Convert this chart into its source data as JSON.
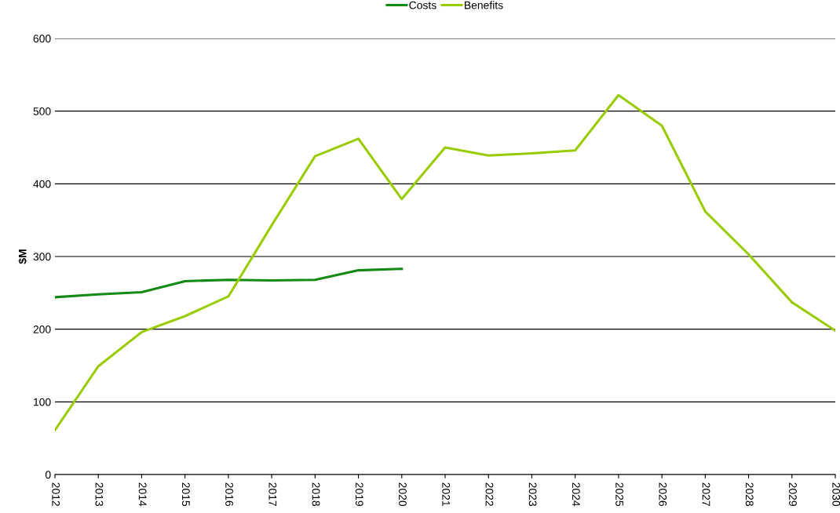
{
  "chart_data": {
    "type": "line",
    "ylabel": "$M",
    "categories": [
      "2012",
      "2013",
      "2014",
      "2015",
      "2016",
      "2017",
      "2018",
      "2019",
      "2020",
      "2021",
      "2022",
      "2023",
      "2024",
      "2025",
      "2026",
      "2027",
      "2028",
      "2029",
      "2030"
    ],
    "series": [
      {
        "name": "Costs",
        "color": "#138a13",
        "values": [
          244,
          248,
          251,
          266,
          268,
          267,
          268,
          281,
          283,
          null,
          null,
          null,
          null,
          null,
          null,
          null,
          null,
          null,
          null
        ]
      },
      {
        "name": "Benefits",
        "color": "#99cc00",
        "values": [
          61,
          149,
          196,
          218,
          245,
          343,
          438,
          462,
          379,
          450,
          439,
          442,
          446,
          522,
          480,
          362,
          303,
          237,
          198
        ]
      }
    ],
    "ylim": [
      0,
      600
    ],
    "yticks": [
      0,
      100,
      200,
      300,
      400,
      500,
      600
    ],
    "grid": "y",
    "legend": "top",
    "marker": "none",
    "line_style": "solid"
  }
}
